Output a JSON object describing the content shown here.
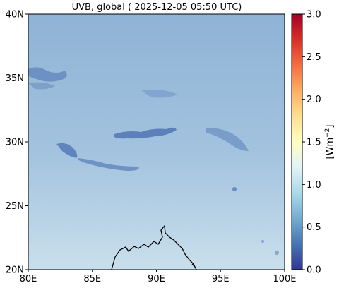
{
  "title": "UVB, global ( 2025-12-05 05:50 UTC)",
  "map": {
    "lon_range": [
      80,
      100
    ],
    "lat_range": [
      20,
      40
    ],
    "x_ticks": [
      {
        "value": 80,
        "label": "80E"
      },
      {
        "value": 85,
        "label": "85E"
      },
      {
        "value": 90,
        "label": "90E"
      },
      {
        "value": 95,
        "label": "95E"
      },
      {
        "value": 100,
        "label": "100E"
      }
    ],
    "y_ticks": [
      {
        "value": 20,
        "label": "20N"
      },
      {
        "value": 25,
        "label": "25N"
      },
      {
        "value": 30,
        "label": "30N"
      },
      {
        "value": 35,
        "label": "35N"
      },
      {
        "value": 40,
        "label": "40N"
      }
    ],
    "field_colors": {
      "north": "#8fb3d6",
      "middle": "#a3c3df",
      "south": "#c9dfec"
    },
    "cloud_color": "#4a6fb0",
    "coastline_color": "#000000"
  },
  "colorbar": {
    "label": "[Wm−2]",
    "range": [
      0.0,
      3.0
    ],
    "ticks": [
      {
        "value": 0.0,
        "label": "0.0"
      },
      {
        "value": 0.5,
        "label": "0.5"
      },
      {
        "value": 1.0,
        "label": "1.0"
      },
      {
        "value": 1.5,
        "label": "1.5"
      },
      {
        "value": 2.0,
        "label": "2.0"
      },
      {
        "value": 2.5,
        "label": "2.5"
      },
      {
        "value": 3.0,
        "label": "3.0"
      }
    ],
    "colors": [
      "#313695",
      "#4575b4",
      "#74add1",
      "#abd9e9",
      "#e0f3f8",
      "#ffffbf",
      "#fee090",
      "#fdae61",
      "#f46d43",
      "#d73027",
      "#a50026"
    ]
  }
}
